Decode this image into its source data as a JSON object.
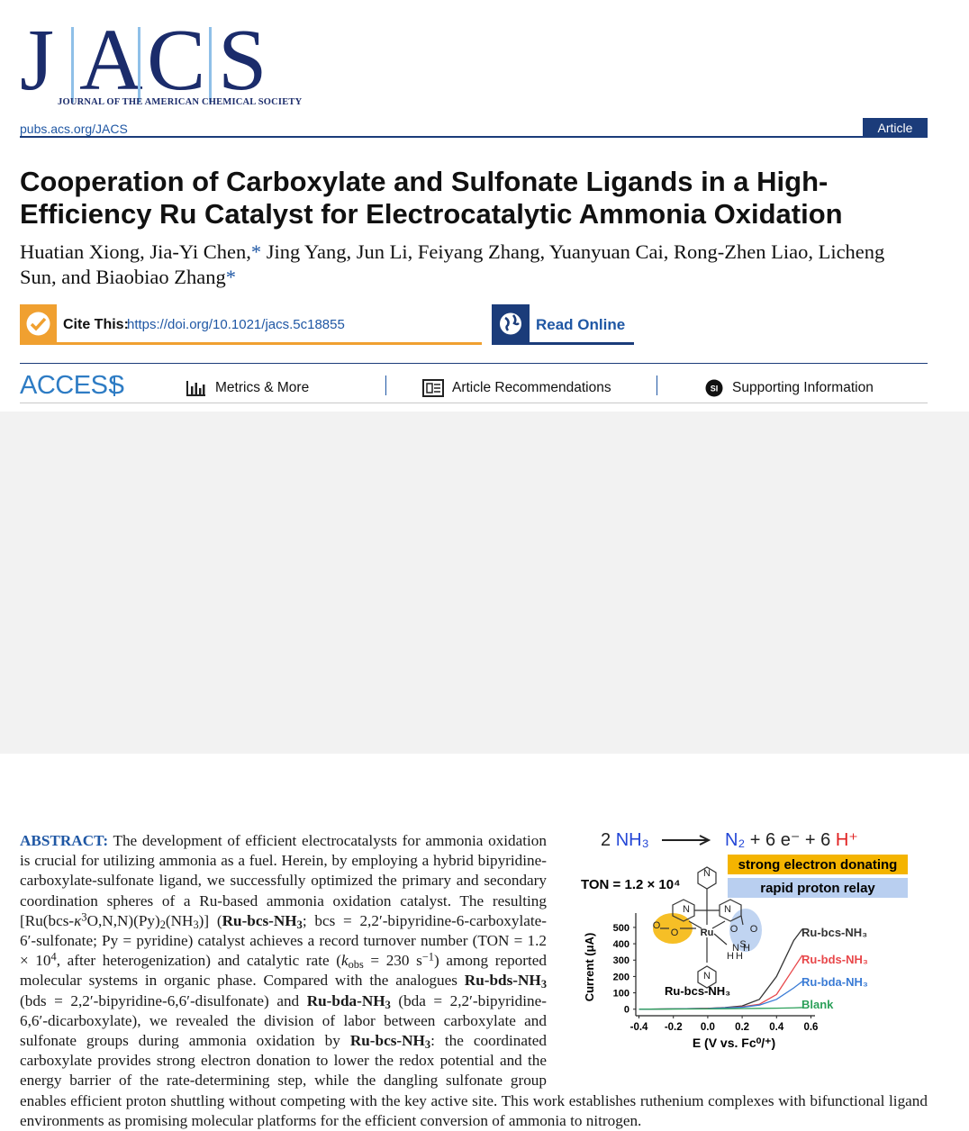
{
  "header": {
    "logo_letters": [
      "J",
      "A",
      "C",
      "S"
    ],
    "journal_name": "JOURNAL OF THE AMERICAN CHEMICAL SOCIETY",
    "url": "pubs.acs.org/JACS",
    "article_type": "Article"
  },
  "title": "Cooperation of Carboxylate and Sulfonate Ligands in a High-Efficiency Ru Catalyst for Electrocatalytic Ammonia Oxidation",
  "authors": [
    "Huatian Xiong, Jia-Yi Chen,",
    {
      "text": "*",
      "style": "link"
    },
    " Jing Yang, Jun Li, Feiyang Zhang, Yuanyuan Cai, Rong-Zhen Liao, Licheng Sun, and Biaobiao Zhang",
    {
      "text": "*",
      "style": "link"
    }
  ],
  "cite": {
    "label": "Cite This:",
    "doi": "https://doi.org/10.1021/jacs.5c18855"
  },
  "read_online": "Read Online",
  "access": {
    "label": "ACCESS",
    "links": [
      "Metrics & More",
      "Article Recommendations",
      "Supporting Information"
    ],
    "si_badge": "SI"
  },
  "abstract": {
    "label": "ABSTRACT:",
    "segments": [
      " The development of efficient electrocatalysts for ammonia oxidation is crucial for utilizing ammonia as a fuel. Herein, by employing a hybrid bipyridine-carboxylate-sulfonate ligand, we successfully optimized the primary and secondary coordination spheres of a Ru-based ammonia oxidation catalyst. The resulting [Ru(bcs-",
      {
        "text": "κ",
        "style": "italic"
      },
      {
        "text": "3",
        "style": "sup"
      },
      "O,N,N)(Py)",
      {
        "text": "2",
        "style": "sub"
      },
      "(NH",
      {
        "text": "3",
        "style": "sub"
      },
      ")] (",
      {
        "text": "Ru-bcs-NH",
        "style": "bold"
      },
      {
        "text": "3",
        "style": "bold-sub"
      },
      "; bcs = 2,2′-bipyridine-6-carboxylate-6′-sulfonate; Py = pyridine) catalyst achieves a record turnover number (TON = 1.2 × 10",
      {
        "text": "4",
        "style": "sup"
      },
      ", after heterogenization) and catalytic rate (",
      {
        "text": "k",
        "style": "italic"
      },
      {
        "text": "obs",
        "style": "sub"
      },
      " = 230 s",
      {
        "text": "−1",
        "style": "sup"
      },
      ") among reported molecular systems in organic phase. Compared with the analogues ",
      {
        "text": "Ru-bds-NH",
        "style": "bold"
      },
      {
        "text": "3",
        "style": "bold-sub"
      },
      " (bds = 2,2′-bipyridine-6,6′-disulfonate) and ",
      {
        "text": "Ru-bda-NH",
        "style": "bold"
      },
      {
        "text": "3",
        "style": "bold-sub"
      },
      " (bda = 2,2′-bipyridine-6,6′-dicarboxylate), we revealed the division of labor between carboxylate and sulfonate groups during ammonia oxidation by ",
      {
        "text": "Ru-bcs-NH",
        "style": "bold"
      },
      {
        "text": "3",
        "style": "bold-sub"
      },
      ": the coordinated carboxylate provides strong electron donation to lower the redox potential and the energy barrier of the rate-determining step, while the dangling sulfonate group enables efficient proton shuttling without competing with the key active site. This work establishes ruthenium complexes with bifunctional ligand environments as promising molecular platforms for the efficient conversion of ammonia to nitrogen."
    ]
  },
  "toc_graphic": {
    "equation_left": [
      {
        "text": "2 ",
        "color": "#222222"
      },
      {
        "text": "NH₃",
        "color": "#2346d6"
      }
    ],
    "equation_right": [
      {
        "text": "N₂",
        "color": "#2346d6"
      },
      {
        "text": " + 6 e⁻ + 6 ",
        "color": "#222222"
      },
      {
        "text": "H⁺",
        "color": "#e02020"
      }
    ],
    "banners": [
      {
        "text": "strong electron donating",
        "color": "#f4b400"
      },
      {
        "text": "rapid proton relay",
        "color": "#b9cff0"
      }
    ],
    "ton": "TON = 1.2 × 10⁴",
    "atoms": [
      "N",
      "N",
      "N",
      "Ru",
      "O",
      "O",
      "S",
      "O",
      "O",
      "N",
      "H",
      "H",
      "H",
      "N"
    ],
    "complex_name": "Ru-bcs-NH₃",
    "chart": {
      "type": "line",
      "y_label": "Current (μA)",
      "x_label": "E (V vs. Fc⁰/⁺)",
      "xlim": [
        -0.45,
        0.65
      ],
      "ylim": [
        -40,
        560
      ],
      "xticks": [
        -0.4,
        -0.2,
        {
          "value": 0,
          "label": "0.0"
        },
        0.2,
        0.4,
        0.6
      ],
      "yticks": [
        0,
        100,
        200,
        300,
        400,
        500
      ],
      "x": [
        -0.4,
        -0.2,
        0,
        0.1,
        0.2,
        0.3,
        0.4,
        0.5,
        0.55
      ],
      "series": [
        {
          "name": "Ru-bcs-NH₃",
          "color": "#333333",
          "values": [
            0,
            2,
            5,
            10,
            20,
            60,
            200,
            420,
            490
          ]
        },
        {
          "name": "Ru-bds-NH₃",
          "color": "#e8474a",
          "values": [
            0,
            2,
            5,
            8,
            15,
            30,
            90,
            250,
            330
          ]
        },
        {
          "name": "Ru-bda-NH₃",
          "color": "#3a7bd5",
          "values": [
            0,
            2,
            4,
            8,
            12,
            25,
            60,
            130,
            170
          ]
        },
        {
          "name": "Blank",
          "color": "#2ca05a",
          "values": [
            0,
            1,
            2,
            3,
            4,
            5,
            6,
            8,
            10
          ]
        }
      ]
    }
  }
}
